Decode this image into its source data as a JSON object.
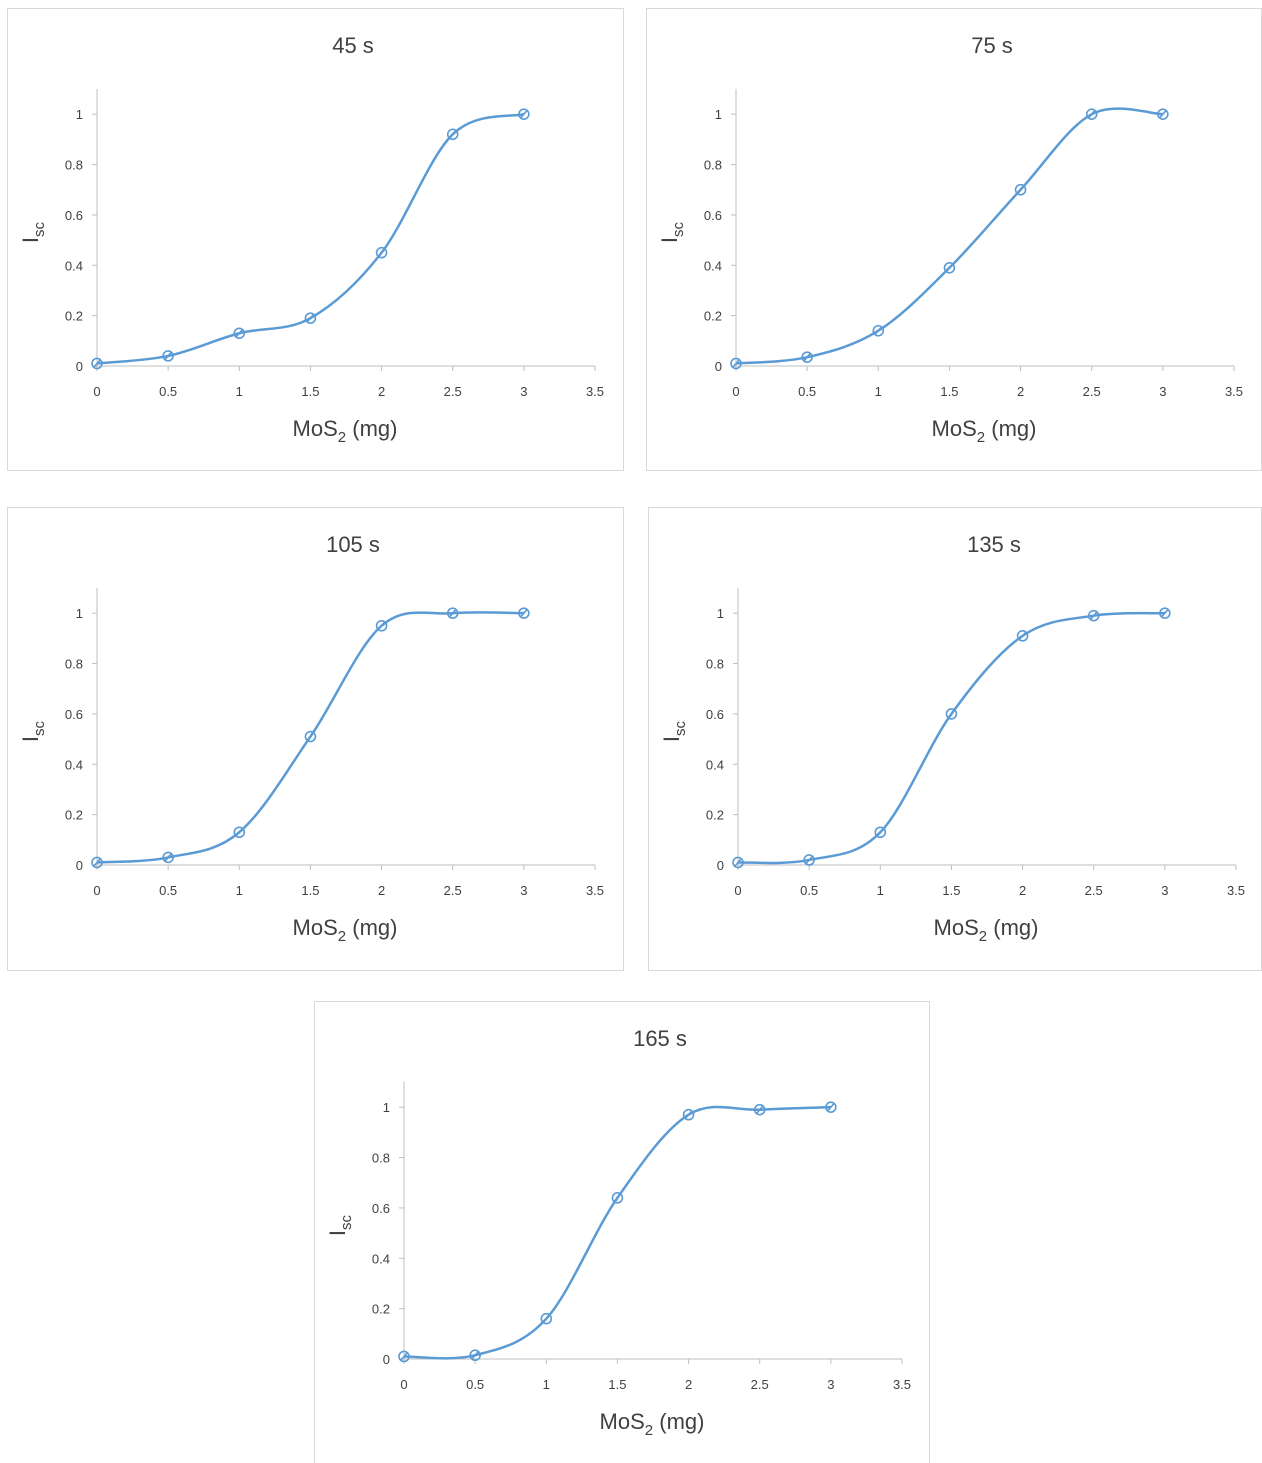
{
  "colors": {
    "series": "#5b9bd5",
    "axis": "#bfbfbf",
    "text": "#404040"
  },
  "chart_data": [
    {
      "type": "line",
      "smooth": true,
      "marker": "circle",
      "grid": false,
      "legend": "none",
      "title": "45 s",
      "xlabel_main": "MoS",
      "xlabel_sub": "2",
      "xlabel_tail": " (mg)",
      "ylabel_main": "I",
      "ylabel_sub": "sc",
      "xlim": [
        0,
        3.5
      ],
      "ylim": [
        0,
        1.1
      ],
      "xticks": [
        "0",
        "0.5",
        "1",
        "1.5",
        "2",
        "2.5",
        "3",
        "3.5"
      ],
      "yticks": [
        "0",
        "0.2",
        "0.4",
        "0.6",
        "0.8",
        "1"
      ],
      "x": [
        0,
        0.5,
        1,
        1.5,
        2,
        2.5,
        3
      ],
      "y": [
        0.01,
        0.04,
        0.13,
        0.19,
        0.45,
        0.92,
        1.0
      ]
    },
    {
      "type": "line",
      "smooth": true,
      "marker": "circle",
      "grid": false,
      "legend": "none",
      "title": "75 s",
      "xlabel_main": "MoS",
      "xlabel_sub": "2",
      "xlabel_tail": " (mg)",
      "ylabel_main": "I",
      "ylabel_sub": "sc",
      "xlim": [
        0,
        3.5
      ],
      "ylim": [
        0,
        1.1
      ],
      "xticks": [
        "0",
        "0.5",
        "1",
        "1.5",
        "2",
        "2.5",
        "3",
        "3.5"
      ],
      "yticks": [
        "0",
        "0.2",
        "0.4",
        "0.6",
        "0.8",
        "1"
      ],
      "x": [
        0,
        0.5,
        1,
        1.5,
        2,
        2.5,
        3
      ],
      "y": [
        0.01,
        0.035,
        0.14,
        0.39,
        0.7,
        1.0,
        1.0
      ]
    },
    {
      "type": "line",
      "smooth": true,
      "marker": "circle",
      "grid": false,
      "legend": "none",
      "title": "105 s",
      "xlabel_main": "MoS",
      "xlabel_sub": "2",
      "xlabel_tail": " (mg)",
      "ylabel_main": "I",
      "ylabel_sub": "sc",
      "xlim": [
        0,
        3.5
      ],
      "ylim": [
        0,
        1.1
      ],
      "xticks": [
        "0",
        "0.5",
        "1",
        "1.5",
        "2",
        "2.5",
        "3",
        "3.5"
      ],
      "yticks": [
        "0",
        "0.2",
        "0.4",
        "0.6",
        "0.8",
        "1"
      ],
      "x": [
        0,
        0.5,
        1,
        1.5,
        2,
        2.5,
        3
      ],
      "y": [
        0.01,
        0.03,
        0.13,
        0.51,
        0.95,
        1.0,
        1.0
      ]
    },
    {
      "type": "line",
      "smooth": true,
      "marker": "circle",
      "grid": false,
      "legend": "none",
      "title": "135 s",
      "xlabel_main": "MoS",
      "xlabel_sub": "2",
      "xlabel_tail": " (mg)",
      "ylabel_main": "I",
      "ylabel_sub": "sc",
      "xlim": [
        0,
        3.5
      ],
      "ylim": [
        0,
        1.1
      ],
      "xticks": [
        "0",
        "0.5",
        "1",
        "1.5",
        "2",
        "2.5",
        "3",
        "3.5"
      ],
      "yticks": [
        "0",
        "0.2",
        "0.4",
        "0.6",
        "0.8",
        "1"
      ],
      "x": [
        0,
        0.5,
        1,
        1.5,
        2,
        2.5,
        3
      ],
      "y": [
        0.01,
        0.02,
        0.13,
        0.6,
        0.91,
        0.99,
        1.0
      ]
    },
    {
      "type": "line",
      "smooth": true,
      "marker": "circle",
      "grid": false,
      "legend": "none",
      "title": "165 s",
      "xlabel_main": "MoS",
      "xlabel_sub": "2",
      "xlabel_tail": " (mg)",
      "ylabel_main": "I",
      "ylabel_sub": "sc",
      "xlim": [
        0,
        3.5
      ],
      "ylim": [
        0,
        1.1
      ],
      "xticks": [
        "0",
        "0.5",
        "1",
        "1.5",
        "2",
        "2.5",
        "3",
        "3.5"
      ],
      "yticks": [
        "0",
        "0.2",
        "0.4",
        "0.6",
        "0.8",
        "1"
      ],
      "x": [
        0,
        0.5,
        1,
        1.5,
        2,
        2.5,
        3
      ],
      "y": [
        0.01,
        0.015,
        0.16,
        0.64,
        0.97,
        0.99,
        1.0
      ]
    }
  ]
}
